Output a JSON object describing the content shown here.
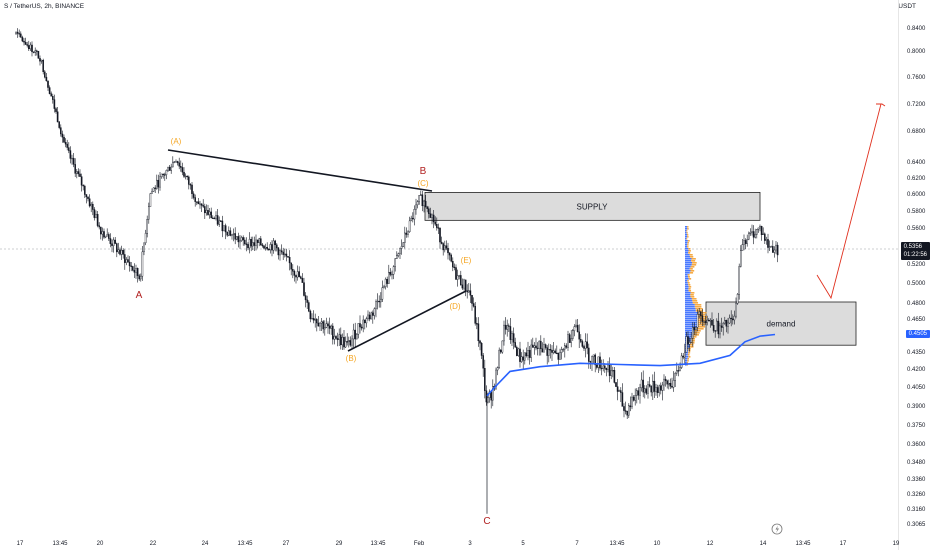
{
  "header": {
    "title": "S / TetherUS, 2h, BINANCE",
    "currency": "USDT"
  },
  "price_tags": {
    "last_price": "0.5356",
    "countdown": "01:22:56",
    "vwap_value": "0.4505"
  },
  "colors": {
    "candle": "#131722",
    "wave_orange": "#f5a623",
    "wave_red": "#b22222",
    "vwap_blue": "#2962ff",
    "projection_red": "#e0301e",
    "zone_fill": "#dcdcdc",
    "volume_profile_blue": "#2962ff",
    "volume_profile_orange": "#f59b23"
  },
  "icons": {
    "lightning": "lightning-icon"
  },
  "chart_data": {
    "type": "candlestick",
    "symbol": "S / TetherUS",
    "timeframe": "2h",
    "exchange": "BINANCE",
    "scale": "log",
    "grid": false,
    "x_ticks": [
      "17",
      "13:45",
      "20",
      "22",
      "24",
      "13:45",
      "27",
      "29",
      "13:45",
      "Feb",
      "3",
      "5",
      "7",
      "13:45",
      "10",
      "12",
      "14",
      "13:45",
      "17",
      "19"
    ],
    "y_ticks": [
      "0.8400",
      "0.8000",
      "0.7600",
      "0.7200",
      "0.6800",
      "0.6400",
      "0.6200",
      "0.6000",
      "0.5800",
      "0.5600",
      "0.5400",
      "0.5200",
      "0.5000",
      "0.4800",
      "0.4650",
      "0.4500",
      "0.4350",
      "0.4200",
      "0.4050",
      "0.3900",
      "0.3750",
      "0.3600",
      "0.3480",
      "0.3360",
      "0.3260",
      "0.3160",
      "0.3065"
    ],
    "approx_close_path": [
      [
        "17",
        0.83
      ],
      [
        "13:45",
        0.79
      ],
      [
        "20",
        0.6
      ],
      [
        "22",
        0.64
      ],
      [
        "24",
        0.575
      ],
      [
        "13:45",
        0.54
      ],
      [
        "27",
        0.525
      ],
      [
        "29",
        0.44
      ],
      [
        "13:45",
        0.51
      ],
      [
        "Feb",
        0.595
      ],
      [
        "3",
        0.38
      ],
      [
        "5",
        0.42
      ],
      [
        "7",
        0.43
      ],
      [
        "13:45",
        0.43
      ],
      [
        "10",
        0.39
      ],
      [
        "12",
        0.46
      ],
      [
        "14",
        0.5356
      ]
    ],
    "wave_labels": [
      "(A)",
      "A",
      "B",
      "(C)",
      "(B)",
      "(E)",
      "(D)",
      "C"
    ],
    "zones": [
      {
        "label": "SUPPLY",
        "top": 0.602,
        "bottom": 0.569
      },
      {
        "label": "demand",
        "top": 0.481,
        "bottom": 0.441
      }
    ],
    "vwap": {
      "name": "",
      "last_value": 0.4505
    },
    "projection": {
      "low": 0.485,
      "target": 0.72
    }
  }
}
